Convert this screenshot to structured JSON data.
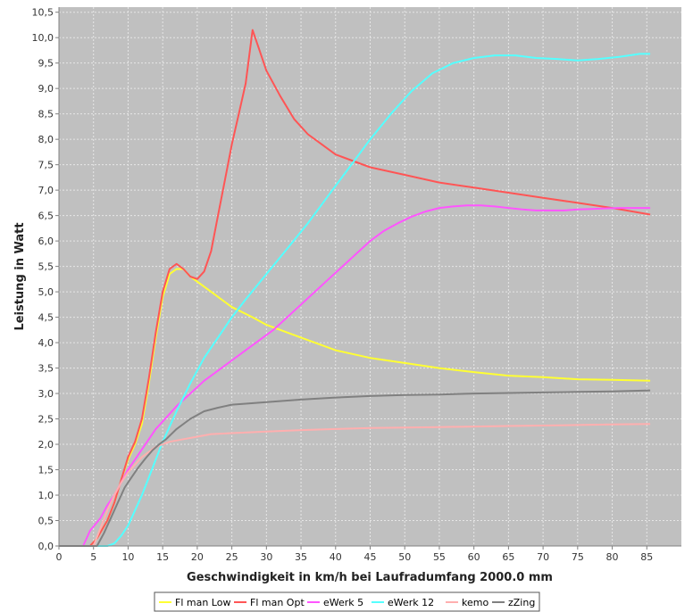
{
  "chart_data": {
    "type": "line",
    "title": "",
    "xlabel": "Geschwindigkeit in km/h bei Laufradumfang 2000.0 mm",
    "ylabel": "Leistung in Watt",
    "xlim": [
      0,
      90
    ],
    "ylim": [
      0,
      10.6
    ],
    "x_ticks": [
      0,
      5,
      10,
      15,
      20,
      25,
      30,
      35,
      40,
      45,
      50,
      55,
      60,
      65,
      70,
      75,
      80,
      85
    ],
    "x_tick_labels": [
      "0",
      "5",
      "10",
      "15",
      "20",
      "25",
      "30",
      "35",
      "40",
      "45",
      "50",
      "55",
      "60",
      "65",
      "70",
      "75",
      "80",
      "85"
    ],
    "y_ticks": [
      0,
      0.5,
      1,
      1.5,
      2,
      2.5,
      3,
      3.5,
      4,
      4.5,
      5,
      5.5,
      6,
      6.5,
      7,
      7.5,
      8,
      8.5,
      9,
      9.5,
      10,
      10.5
    ],
    "y_tick_labels": [
      "0,0",
      "0,5",
      "1,0",
      "1,5",
      "2,0",
      "2,5",
      "3,0",
      "3,5",
      "4,0",
      "4,5",
      "5,0",
      "5,5",
      "6,0",
      "6,5",
      "7,0",
      "7,5",
      "8,0",
      "8,5",
      "9,0",
      "9,5",
      "10,0",
      "10,5"
    ],
    "grid": true,
    "legend_position": "bottom",
    "background": "#c0c0c0",
    "series": [
      {
        "name": "Fl man Low",
        "color": "#ffff33",
        "x": [
          0,
          4.5,
          5.5,
          7,
          8,
          9,
          10,
          11,
          12,
          13,
          14,
          15,
          16,
          17,
          18,
          19,
          20,
          22,
          25,
          28,
          30,
          35,
          40,
          45,
          50,
          55,
          60,
          65,
          70,
          75,
          80,
          85.5
        ],
        "y": [
          0,
          0,
          0.15,
          0.5,
          0.85,
          1.3,
          1.7,
          2.0,
          2.4,
          3.2,
          4.1,
          4.9,
          5.35,
          5.45,
          5.45,
          5.3,
          5.2,
          5.0,
          4.7,
          4.5,
          4.35,
          4.1,
          3.85,
          3.7,
          3.6,
          3.5,
          3.42,
          3.35,
          3.32,
          3.28,
          3.27,
          3.25
        ]
      },
      {
        "name": "Fl man Opt",
        "color": "#ff5555",
        "x": [
          0,
          4.5,
          5.5,
          7,
          8,
          9,
          10,
          11,
          12,
          13,
          14,
          15,
          16,
          17,
          18,
          19,
          20,
          21,
          22,
          23,
          24,
          25,
          26,
          27,
          28,
          29,
          30,
          32,
          34,
          36,
          38,
          40,
          45,
          50,
          55,
          60,
          65,
          70,
          75,
          80,
          85.5
        ],
        "y": [
          0,
          0,
          0.15,
          0.5,
          0.85,
          1.3,
          1.75,
          2.05,
          2.5,
          3.3,
          4.2,
          5.0,
          5.45,
          5.55,
          5.45,
          5.3,
          5.25,
          5.4,
          5.8,
          6.5,
          7.2,
          7.9,
          8.5,
          9.1,
          10.15,
          9.75,
          9.35,
          8.85,
          8.4,
          8.1,
          7.9,
          7.7,
          7.45,
          7.3,
          7.15,
          7.05,
          6.95,
          6.85,
          6.75,
          6.65,
          6.52
        ]
      },
      {
        "name": "eWerk 5",
        "color": "#ff55ff",
        "x": [
          0,
          3.5,
          4.5,
          6,
          7,
          8,
          9,
          10,
          11,
          12,
          13,
          14,
          15,
          17,
          19,
          21,
          23,
          25,
          27,
          29,
          31,
          33,
          35,
          37,
          39,
          41,
          43,
          45,
          47,
          49,
          51,
          53,
          55,
          57,
          59,
          61,
          63,
          65,
          67,
          69,
          71,
          73,
          75,
          77,
          79,
          81,
          83,
          85.5
        ],
        "y": [
          0,
          0,
          0.3,
          0.55,
          0.8,
          1.0,
          1.25,
          1.5,
          1.7,
          1.9,
          2.1,
          2.3,
          2.45,
          2.75,
          3.0,
          3.25,
          3.45,
          3.65,
          3.85,
          4.05,
          4.25,
          4.5,
          4.75,
          5.0,
          5.25,
          5.5,
          5.75,
          6.0,
          6.2,
          6.35,
          6.48,
          6.58,
          6.65,
          6.68,
          6.7,
          6.7,
          6.68,
          6.65,
          6.62,
          6.6,
          6.6,
          6.6,
          6.62,
          6.63,
          6.64,
          6.65,
          6.65,
          6.65
        ]
      },
      {
        "name": "eWerk 12",
        "color": "#55ffff",
        "x": [
          0,
          7,
          8,
          9,
          10,
          11,
          12,
          13,
          14,
          15,
          17,
          19,
          21,
          23,
          25,
          27,
          30,
          33,
          36,
          39,
          42,
          45,
          48,
          51,
          54,
          57,
          60,
          63,
          66,
          69,
          72,
          75,
          78,
          81,
          84,
          85.5
        ],
        "y": [
          0,
          0,
          0.05,
          0.2,
          0.4,
          0.7,
          1.0,
          1.35,
          1.7,
          2.05,
          2.65,
          3.2,
          3.7,
          4.1,
          4.5,
          4.85,
          5.35,
          5.85,
          6.35,
          6.9,
          7.45,
          8.0,
          8.5,
          8.95,
          9.3,
          9.5,
          9.6,
          9.65,
          9.65,
          9.6,
          9.58,
          9.55,
          9.58,
          9.62,
          9.68,
          9.68
        ]
      },
      {
        "name": "kemo",
        "color": "#ffafaf",
        "x": [
          0,
          5,
          6,
          7,
          8,
          9,
          10,
          11,
          12,
          13,
          14,
          15,
          16,
          18,
          20,
          22,
          25,
          30,
          35,
          40,
          45,
          50,
          55,
          60,
          65,
          70,
          75,
          80,
          85.5
        ],
        "y": [
          0,
          0,
          0.35,
          0.7,
          1.0,
          1.25,
          1.45,
          1.6,
          1.75,
          1.85,
          1.95,
          2.0,
          2.05,
          2.1,
          2.15,
          2.2,
          2.22,
          2.25,
          2.28,
          2.3,
          2.32,
          2.33,
          2.34,
          2.35,
          2.36,
          2.37,
          2.38,
          2.39,
          2.4
        ]
      },
      {
        "name": "zZing",
        "color": "#808080",
        "x": [
          0,
          5.5,
          6.5,
          7.5,
          8.5,
          9.5,
          10.5,
          11.5,
          12.5,
          13.5,
          14.5,
          15.5,
          17,
          19,
          21,
          23,
          25,
          27,
          30,
          35,
          40,
          45,
          50,
          55,
          60,
          65,
          70,
          75,
          80,
          85.5
        ],
        "y": [
          0,
          0,
          0.25,
          0.55,
          0.85,
          1.15,
          1.35,
          1.55,
          1.72,
          1.88,
          2.0,
          2.1,
          2.3,
          2.5,
          2.65,
          2.72,
          2.78,
          2.8,
          2.83,
          2.88,
          2.92,
          2.95,
          2.97,
          2.98,
          3.0,
          3.01,
          3.02,
          3.03,
          3.04,
          3.06
        ]
      }
    ]
  }
}
